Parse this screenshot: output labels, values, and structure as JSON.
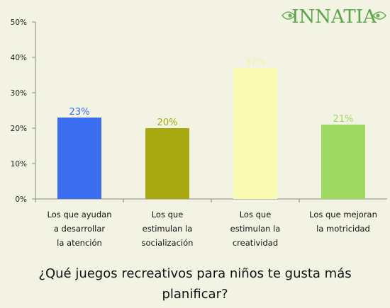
{
  "brand": {
    "logo_text": "INNATIA",
    "logo_color": "#5aa54a"
  },
  "question": "¿Qué juegos recreativos para niños te gusta más planificar?",
  "chart_data": {
    "type": "bar",
    "categories": [
      "Los que ayudan\na desarrollar\nla atención",
      "Los que\nestimulan la\nsocialización",
      "Los que\nestimulan la\ncreatividad",
      "Los que mejoran\nla motricidad"
    ],
    "values": [
      23,
      20,
      37,
      21
    ],
    "value_labels": [
      "23%",
      "20%",
      "37%",
      "21%"
    ],
    "colors": [
      "#3b6ef0",
      "#a8a810",
      "#f9fbb3",
      "#9fdb62"
    ],
    "label_colors": [
      "#3b6ef0",
      "#a8a810",
      "#f0f2a6",
      "#9fdb62"
    ],
    "yticks": [
      "0%",
      "10%",
      "20%",
      "30%",
      "40%",
      "50%"
    ],
    "ylim": [
      0,
      50
    ],
    "grid": false
  }
}
